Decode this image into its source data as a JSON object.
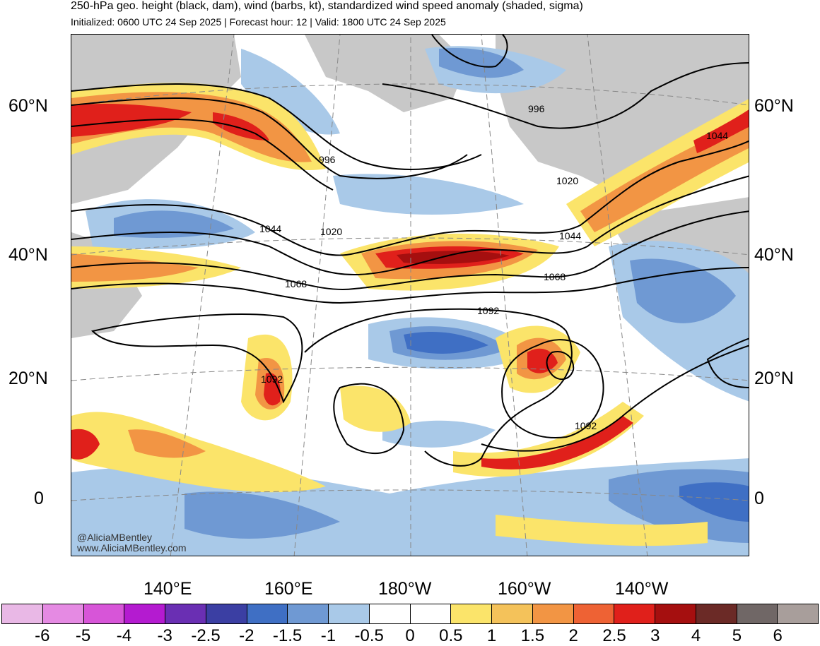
{
  "header": {
    "title": "250-hPa geo. height (black, dam), wind (barbs, kt), standardized wind speed anomaly (shaded, sigma)",
    "subtitle": "Initialized: 0600 UTC 24 Sep 2025 | Forecast hour: 12 | Valid: 1800 UTC 24 Sep 2025"
  },
  "lat_labels": [
    "60°N",
    "40°N",
    "20°N",
    "0"
  ],
  "lon_labels": [
    "140°E",
    "160°E",
    "180°W",
    "160°W",
    "140°W"
  ],
  "contour_labels": [
    "996",
    "996",
    "1020",
    "1020",
    "1044",
    "1044",
    "1044",
    "1068",
    "1068",
    "1092",
    "1092",
    "1092"
  ],
  "credit": {
    "handle": "@AliciaMBentley",
    "site": "www.AliciaMBentley.com"
  },
  "colorbar": {
    "colors": [
      "#e9b8e6",
      "#e58ae3",
      "#d755d8",
      "#b41bd0",
      "#6a2fb3",
      "#3b3fa3",
      "#3f6fc4",
      "#6f99d3",
      "#a9c9e8",
      "#ffffff",
      "#ffffff",
      "#fbe46a",
      "#f4c25a",
      "#f29544",
      "#ee6234",
      "#e0201b",
      "#a50f0f",
      "#6b2a26",
      "#706766",
      "#a89e9b"
    ],
    "labels": [
      "-6",
      "-5",
      "-4",
      "-3",
      "-2.5",
      "-2",
      "-1.5",
      "-1",
      "-0.5",
      "0",
      "0.5",
      "1",
      "1.5",
      "2",
      "2.5",
      "3",
      "4",
      "5",
      "6"
    ]
  },
  "map_colors": {
    "land": "#c8c8c8",
    "blue_light": "#a9c9e8",
    "blue_mid": "#6f99d3",
    "blue_dark": "#3f6fc4",
    "yellow": "#fbe46a",
    "orange": "#f29544",
    "red": "#e0201b",
    "darkred": "#a50f0f"
  }
}
